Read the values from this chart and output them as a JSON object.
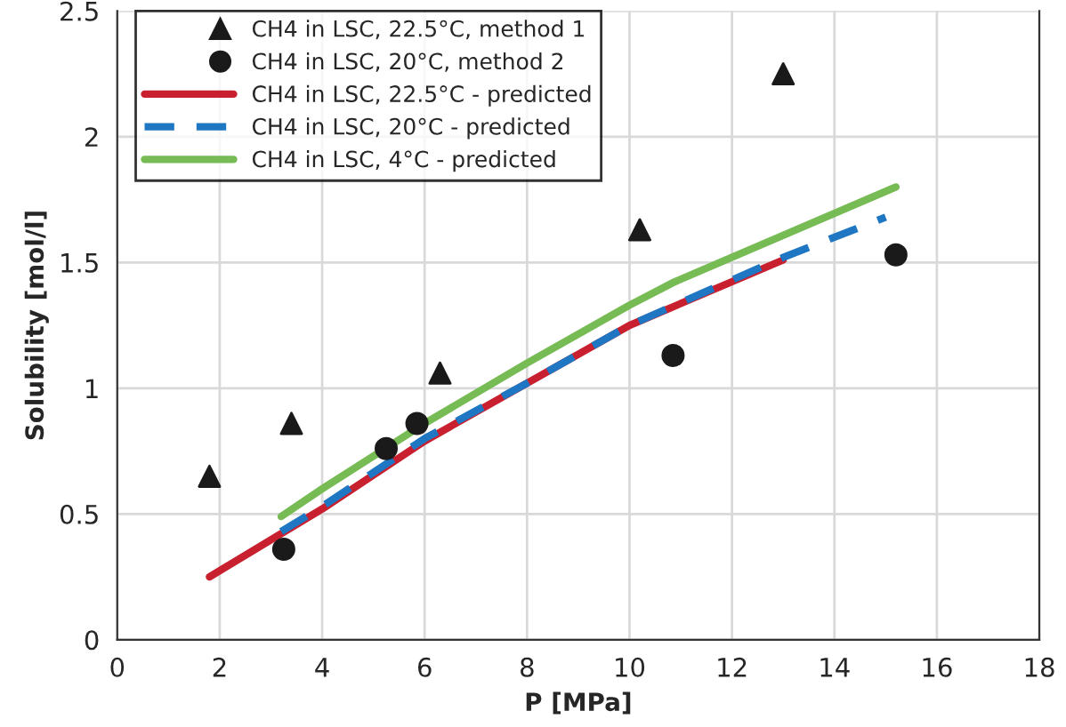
{
  "chart_data": {
    "type": "scatter",
    "xlabel": "P [MPa]",
    "ylabel": "Solubility [mol/l]",
    "xlim": [
      0,
      18
    ],
    "xticks": [
      0,
      2,
      4,
      6,
      8,
      10,
      12,
      14,
      16,
      18
    ],
    "ylim": [
      0,
      2.5
    ],
    "yticks": [
      0,
      0.5,
      1,
      1.5,
      2,
      2.5
    ],
    "grid": true,
    "legend": "top left",
    "series": [
      {
        "name": "CH4 in LSC, 22.5°C, method 1",
        "type": "scatter",
        "marker": "triangle",
        "color": "#1a1a1a",
        "x": [
          1.8,
          3.4,
          6.3,
          10.2,
          13.0
        ],
        "values": [
          0.65,
          0.86,
          1.06,
          1.63,
          2.25
        ]
      },
      {
        "name": "CH4 in LSC, 20°C, method 2",
        "type": "scatter",
        "marker": "circle",
        "color": "#1a1a1a",
        "x": [
          3.25,
          5.25,
          5.85,
          10.85,
          15.2
        ],
        "values": [
          0.36,
          0.76,
          0.86,
          1.13,
          1.53
        ]
      },
      {
        "name": "CH4 in LSC, 22.5°C - predicted",
        "type": "line",
        "line_style": "solid",
        "color": "#c8202f",
        "x": [
          1.8,
          4,
          6,
          8,
          10,
          13.0
        ],
        "values": [
          0.25,
          0.52,
          0.79,
          1.02,
          1.25,
          1.51
        ]
      },
      {
        "name": "CH4 in LSC, 20°C - predicted",
        "type": "line",
        "line_style": "dashed",
        "color": "#1f77c4",
        "x": [
          3.2,
          4,
          6,
          8,
          10,
          13,
          15
        ],
        "values": [
          0.43,
          0.53,
          0.8,
          1.02,
          1.25,
          1.52,
          1.68
        ]
      },
      {
        "name": "CH4 in LSC, 4°C - predicted",
        "type": "line",
        "line_style": "solid",
        "color": "#77bb55",
        "x": [
          3.2,
          4,
          6,
          8,
          10,
          10.85,
          15.2
        ],
        "values": [
          0.49,
          0.6,
          0.86,
          1.1,
          1.33,
          1.42,
          1.8
        ]
      }
    ]
  }
}
